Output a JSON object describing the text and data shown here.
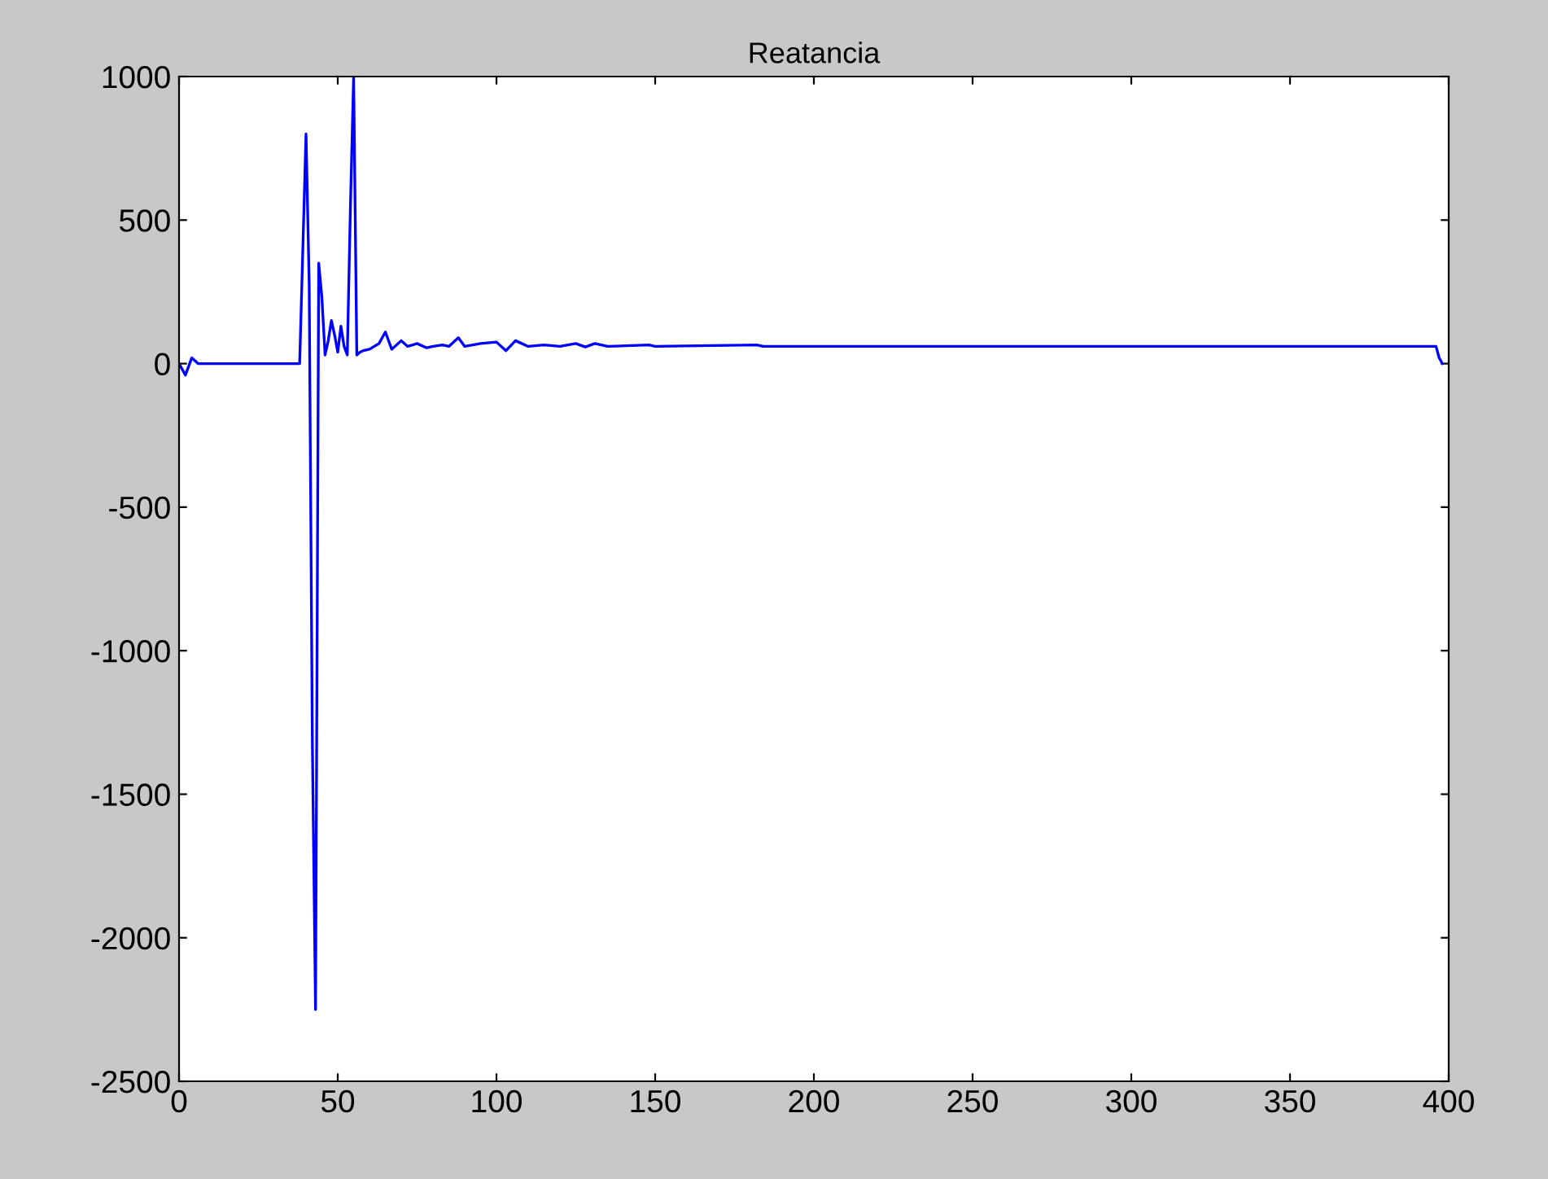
{
  "chart_data": {
    "type": "line",
    "title": "Reatancia",
    "series": [
      {
        "color": "#0000ff",
        "x": [
          0,
          1,
          2,
          3,
          4,
          5,
          6,
          38,
          39,
          40,
          41,
          42,
          43,
          44,
          45,
          46,
          47,
          48,
          49,
          50,
          51,
          52,
          53,
          54,
          55,
          56,
          57,
          58,
          60,
          63,
          65,
          67,
          70,
          72,
          75,
          78,
          80,
          83,
          85,
          88,
          90,
          95,
          100,
          103,
          106,
          110,
          115,
          120,
          125,
          128,
          131,
          135,
          148,
          150,
          182,
          184,
          396,
          397,
          398
        ],
        "values": [
          0,
          -20,
          -40,
          -10,
          20,
          10,
          0,
          0,
          400,
          800,
          280,
          -1320,
          -2250,
          350,
          230,
          30,
          80,
          150,
          100,
          40,
          130,
          60,
          30,
          550,
          1000,
          30,
          40,
          45,
          50,
          70,
          110,
          50,
          80,
          60,
          70,
          55,
          60,
          65,
          60,
          90,
          60,
          70,
          75,
          45,
          80,
          60,
          65,
          60,
          70,
          58,
          70,
          60,
          65,
          60,
          65,
          60,
          60,
          20,
          0
        ]
      }
    ],
    "xlim": [
      0,
      400
    ],
    "xticks": [
      0,
      50,
      100,
      150,
      200,
      250,
      300,
      350,
      400
    ],
    "ylim": [
      -2500,
      1000
    ],
    "yticks": [
      -2500,
      -2000,
      -1500,
      -1000,
      -500,
      0,
      500,
      1000
    ],
    "grid": false,
    "legend": false,
    "marker": "none",
    "line_style": "solid"
  }
}
